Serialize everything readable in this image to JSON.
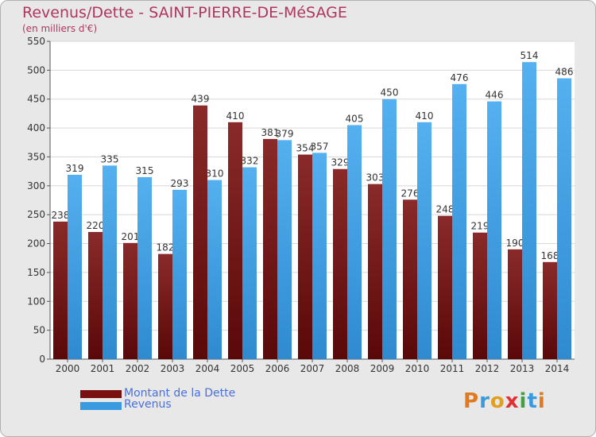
{
  "title": "Revenus/Dette - SAINT-PIERRE-DE-MéSAGE",
  "subtitle": "(en milliers d'€)",
  "colors": {
    "dette": "#7a1010",
    "revenus": "#3a9ae0",
    "title": "#b03560",
    "legend_text": "#4a6fe0"
  },
  "legend": {
    "dette": "Montant de la Dette",
    "revenus": "Revenus"
  },
  "logo": {
    "letters": [
      "P",
      "r",
      "o",
      "x",
      "i",
      "t",
      "i"
    ]
  },
  "chart_data": {
    "type": "bar",
    "categories": [
      "2000",
      "2001",
      "2002",
      "2003",
      "2004",
      "2005",
      "2006",
      "2007",
      "2008",
      "2009",
      "2010",
      "2011",
      "2012",
      "2013",
      "2014"
    ],
    "series": [
      {
        "name": "Montant de la Dette",
        "values": [
          238,
          220,
          201,
          182,
          439,
          410,
          381,
          354,
          329,
          303,
          276,
          248,
          219,
          190,
          168
        ]
      },
      {
        "name": "Revenus",
        "values": [
          319,
          335,
          315,
          293,
          310,
          332,
          379,
          357,
          405,
          450,
          410,
          476,
          446,
          514,
          486
        ]
      }
    ],
    "yticks": [
      0,
      50,
      100,
      150,
      200,
      250,
      300,
      350,
      400,
      450,
      500,
      550
    ],
    "ylim": [
      0,
      550
    ],
    "grid": true,
    "legend_position": "bottom-left"
  }
}
